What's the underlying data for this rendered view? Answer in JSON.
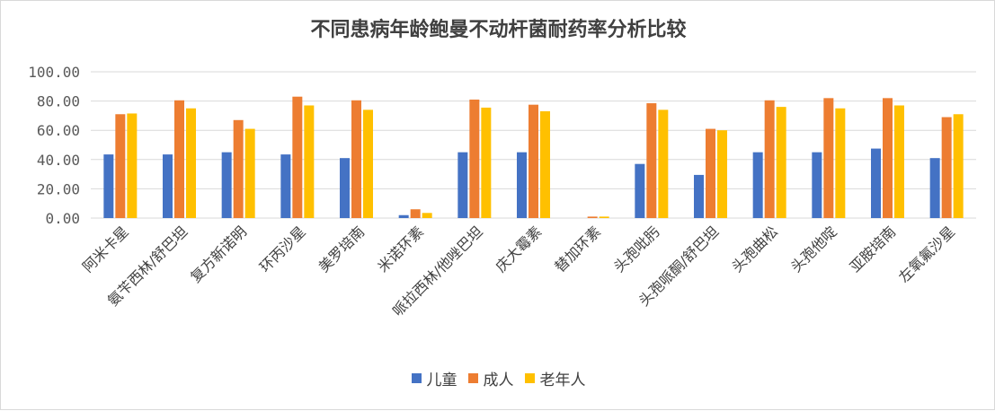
{
  "chart_data": {
    "type": "bar",
    "title": "不同患病年龄鲍曼不动杆菌耐药率分析比较",
    "xlabel": "",
    "ylabel": "",
    "ylim": [
      0,
      100
    ],
    "yticks": [
      "100.00",
      "80.00",
      "60.00",
      "40.00",
      "20.00",
      "0.00"
    ],
    "ytick_values": [
      100,
      80,
      60,
      40,
      20,
      0
    ],
    "grid": true,
    "legend_position": "bottom",
    "categories": [
      "阿米卡星",
      "氨苄西林/舒巴坦",
      "复方新诺明",
      "环丙沙星",
      "美罗培南",
      "米诺环素",
      "哌拉西林/他唑巴坦",
      "庆大霉素",
      "替加环素",
      "头孢吡肟",
      "头孢哌酮/舒巴坦",
      "头孢曲松",
      "头孢他啶",
      "亚胺培南",
      "左氧氟沙星"
    ],
    "series": [
      {
        "name": "儿童",
        "color": "#4472c4",
        "values": [
          43.5,
          43.5,
          45.0,
          43.5,
          41.0,
          2.0,
          45.0,
          45.0,
          0.0,
          37.0,
          29.5,
          45.0,
          45.0,
          47.5,
          41.0
        ]
      },
      {
        "name": "成人",
        "color": "#ed7d31",
        "values": [
          71.0,
          80.5,
          67.0,
          83.0,
          80.5,
          6.0,
          81.0,
          77.5,
          1.0,
          78.5,
          61.0,
          80.5,
          82.0,
          82.0,
          69.0
        ]
      },
      {
        "name": "老年人",
        "color": "#ffc000",
        "values": [
          71.5,
          75.0,
          61.0,
          77.0,
          74.0,
          3.5,
          75.5,
          73.0,
          1.0,
          74.0,
          60.0,
          76.0,
          75.0,
          77.0,
          71.0
        ]
      }
    ]
  }
}
